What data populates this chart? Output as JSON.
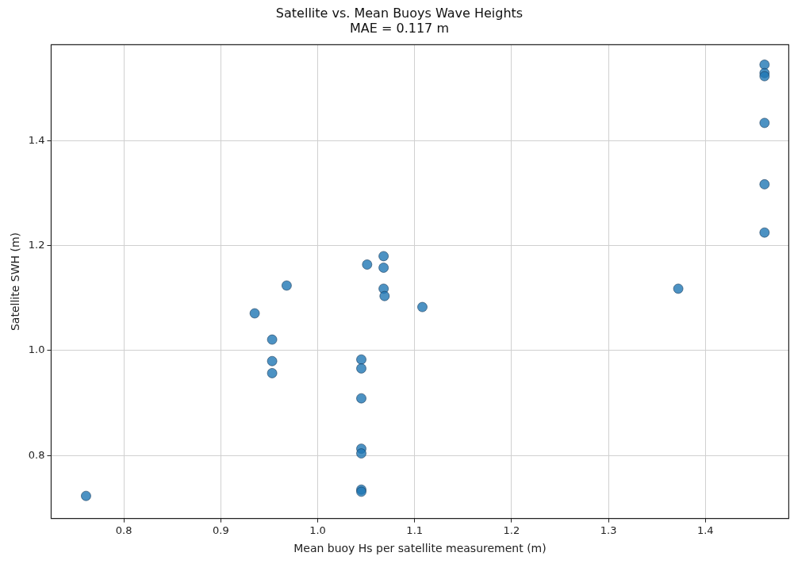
{
  "chart_data": {
    "type": "scatter",
    "title": "Satellite vs. Mean Buoys Wave Heights",
    "subtitle": "MAE = 0.117 m",
    "xlabel": "Mean buoy Hs per satellite measurement (m)",
    "ylabel": "Satellite SWH (m)",
    "x": [
      0.761,
      0.935,
      0.968,
      0.953,
      0.953,
      0.953,
      1.045,
      1.045,
      1.045,
      1.045,
      1.045,
      1.045,
      1.045,
      1.051,
      1.068,
      1.068,
      1.068,
      1.069,
      1.108,
      1.372,
      1.461,
      1.461,
      1.461,
      1.461,
      1.461,
      1.461
    ],
    "series": [
      {
        "color": "#1f77b4",
        "values": [
          0.723,
          1.071,
          1.124,
          1.021,
          0.98,
          0.957,
          0.983,
          0.966,
          0.909,
          0.813,
          0.804,
          0.735,
          0.731,
          1.164,
          1.18,
          1.158,
          1.118,
          1.104,
          1.083,
          1.118,
          1.545,
          1.529,
          1.523,
          1.434,
          1.317,
          1.225
        ]
      }
    ],
    "xlim": [
      0.725,
      1.486
    ],
    "ylim": [
      0.68,
      1.583
    ],
    "xticks": [
      0.8,
      0.9,
      {
        "value": 1,
        "label": "1.0"
      },
      1.1,
      1.2,
      1.3,
      1.4
    ],
    "yticks": [
      0.8,
      {
        "value": 1,
        "label": "1.0"
      },
      1.2,
      1.4
    ],
    "grid": true,
    "marker": "circle",
    "legend": false
  }
}
